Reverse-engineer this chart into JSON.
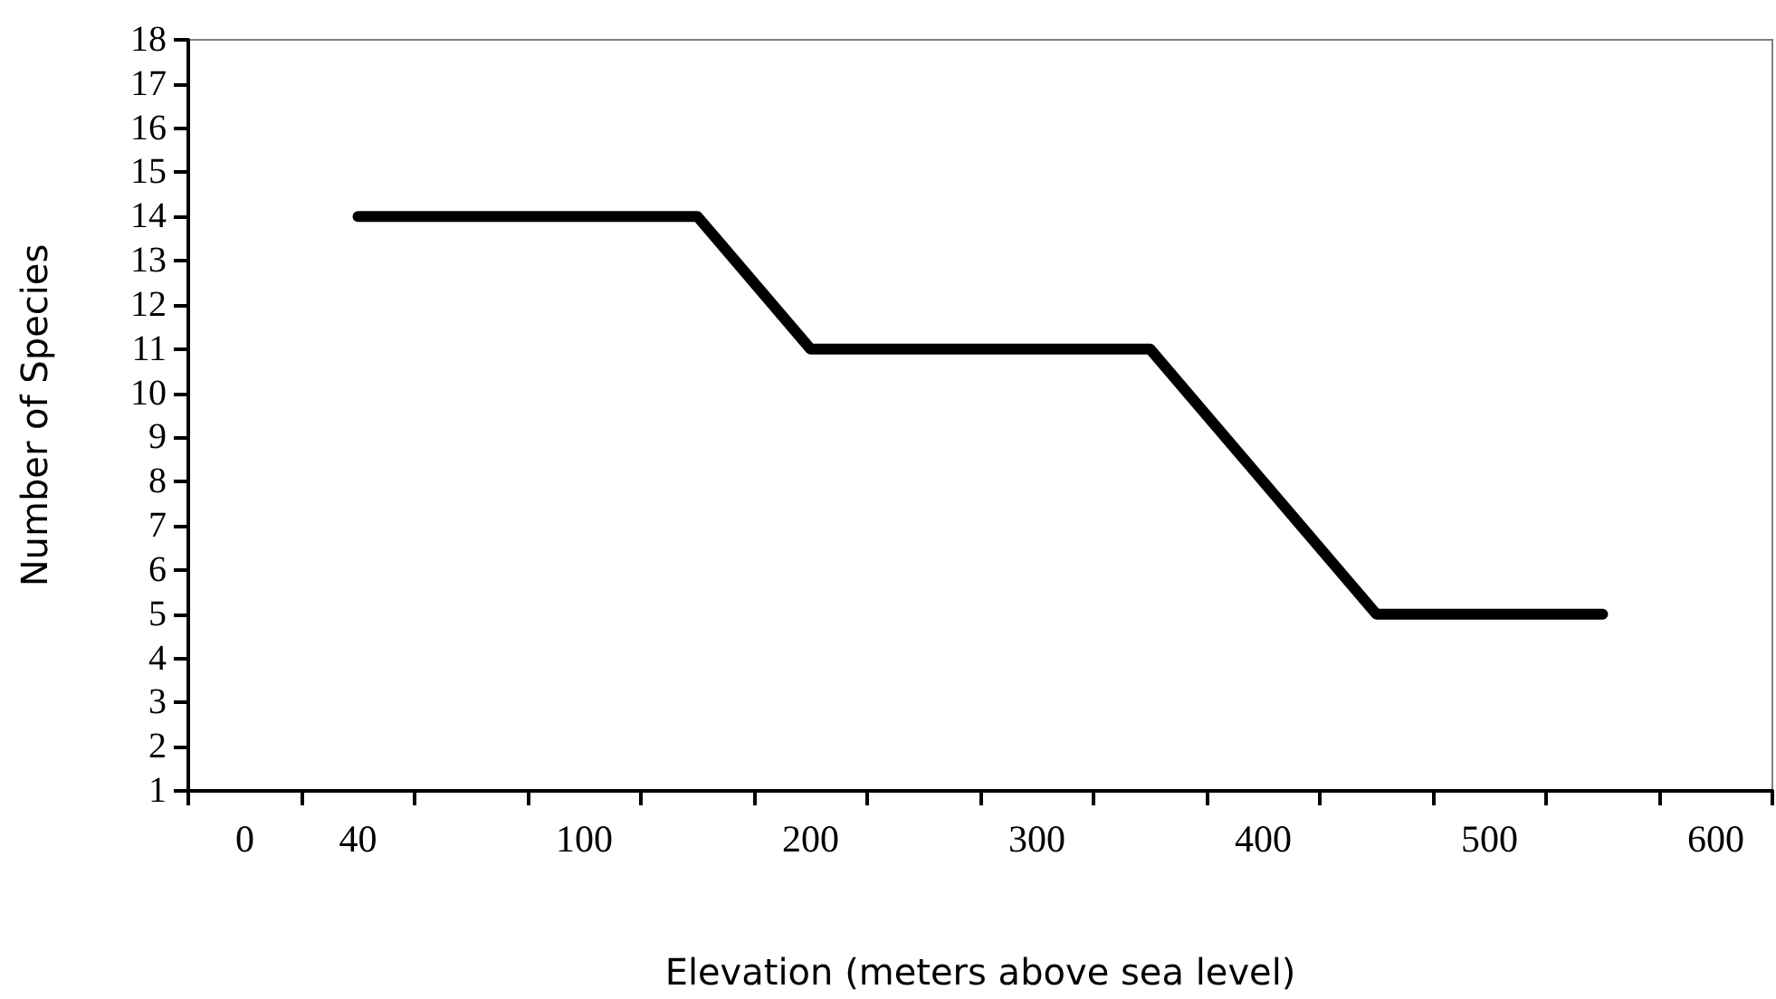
{
  "chart_data": {
    "type": "line",
    "xlabel": "Elevation (meters above sea level)",
    "ylabel": "Number of Species",
    "categories": [
      "0",
      "40",
      null,
      "100",
      null,
      "200",
      null,
      "300",
      null,
      "400",
      null,
      "500",
      null,
      "600"
    ],
    "series": [
      {
        "color": "#000000",
        "values": [
          null,
          14,
          null,
          null,
          14,
          11,
          null,
          null,
          11,
          null,
          5,
          null,
          5,
          null
        ]
      }
    ],
    "ylim": [
      1,
      18
    ],
    "yticks": [
      1,
      2,
      3,
      4,
      5,
      6,
      7,
      8,
      9,
      10,
      11,
      12,
      13,
      14,
      15,
      16,
      17,
      18
    ],
    "grid": false,
    "marker": "none",
    "line_style": "solid"
  }
}
